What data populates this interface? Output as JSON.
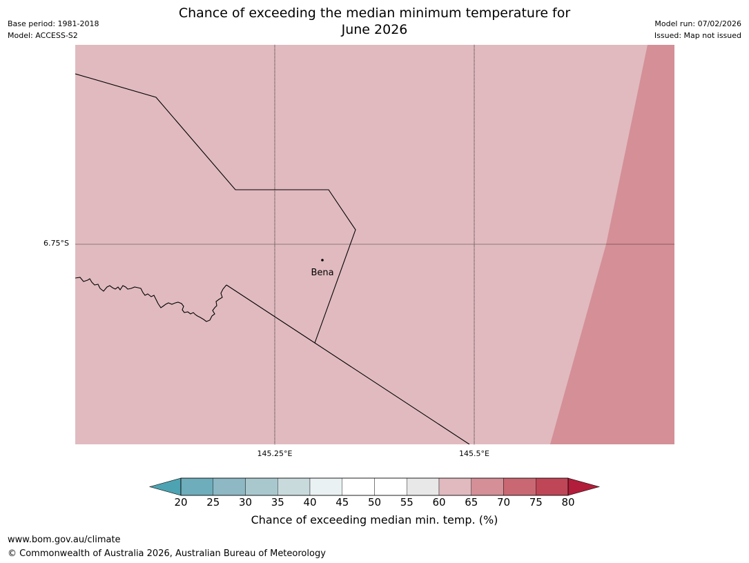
{
  "header": {
    "title_line1": "Chance of exceeding the median minimum temperature for",
    "title_line2": "June 2026",
    "base_period": "Base period: 1981-2018",
    "model": "Model: ACCESS-S2",
    "model_run": "Model run: 07/02/2026",
    "issued": "Issued: Map not issued"
  },
  "map": {
    "lat_label": "6.75°S",
    "lon_labels": [
      "145.25°E",
      "145.5°E"
    ],
    "place": "Bena",
    "colors": {
      "band_60_65": "#e0babf",
      "band_65_70": "#d48f97",
      "boundary": "#000000",
      "gridline": "#000000"
    }
  },
  "colorbar": {
    "ticks": [
      "20",
      "25",
      "30",
      "35",
      "40",
      "45",
      "50",
      "55",
      "60",
      "65",
      "70",
      "75",
      "80"
    ],
    "colors": [
      "#4ea3b2",
      "#6eadbb",
      "#8db8c4",
      "#a9c8ce",
      "#c9dadd",
      "#eaf1f2",
      "#ffffff",
      "#ffffff",
      "#e8e8e8",
      "#e0babf",
      "#d48f97",
      "#c96873",
      "#bf4657",
      "#b11d3a"
    ],
    "label": "Chance of exceeding median min. temp. (%)"
  },
  "footer": {
    "url": "www.bom.gov.au/climate",
    "copyright": "© Commonwealth of Australia 2026, Australian Bureau of Meteorology"
  }
}
